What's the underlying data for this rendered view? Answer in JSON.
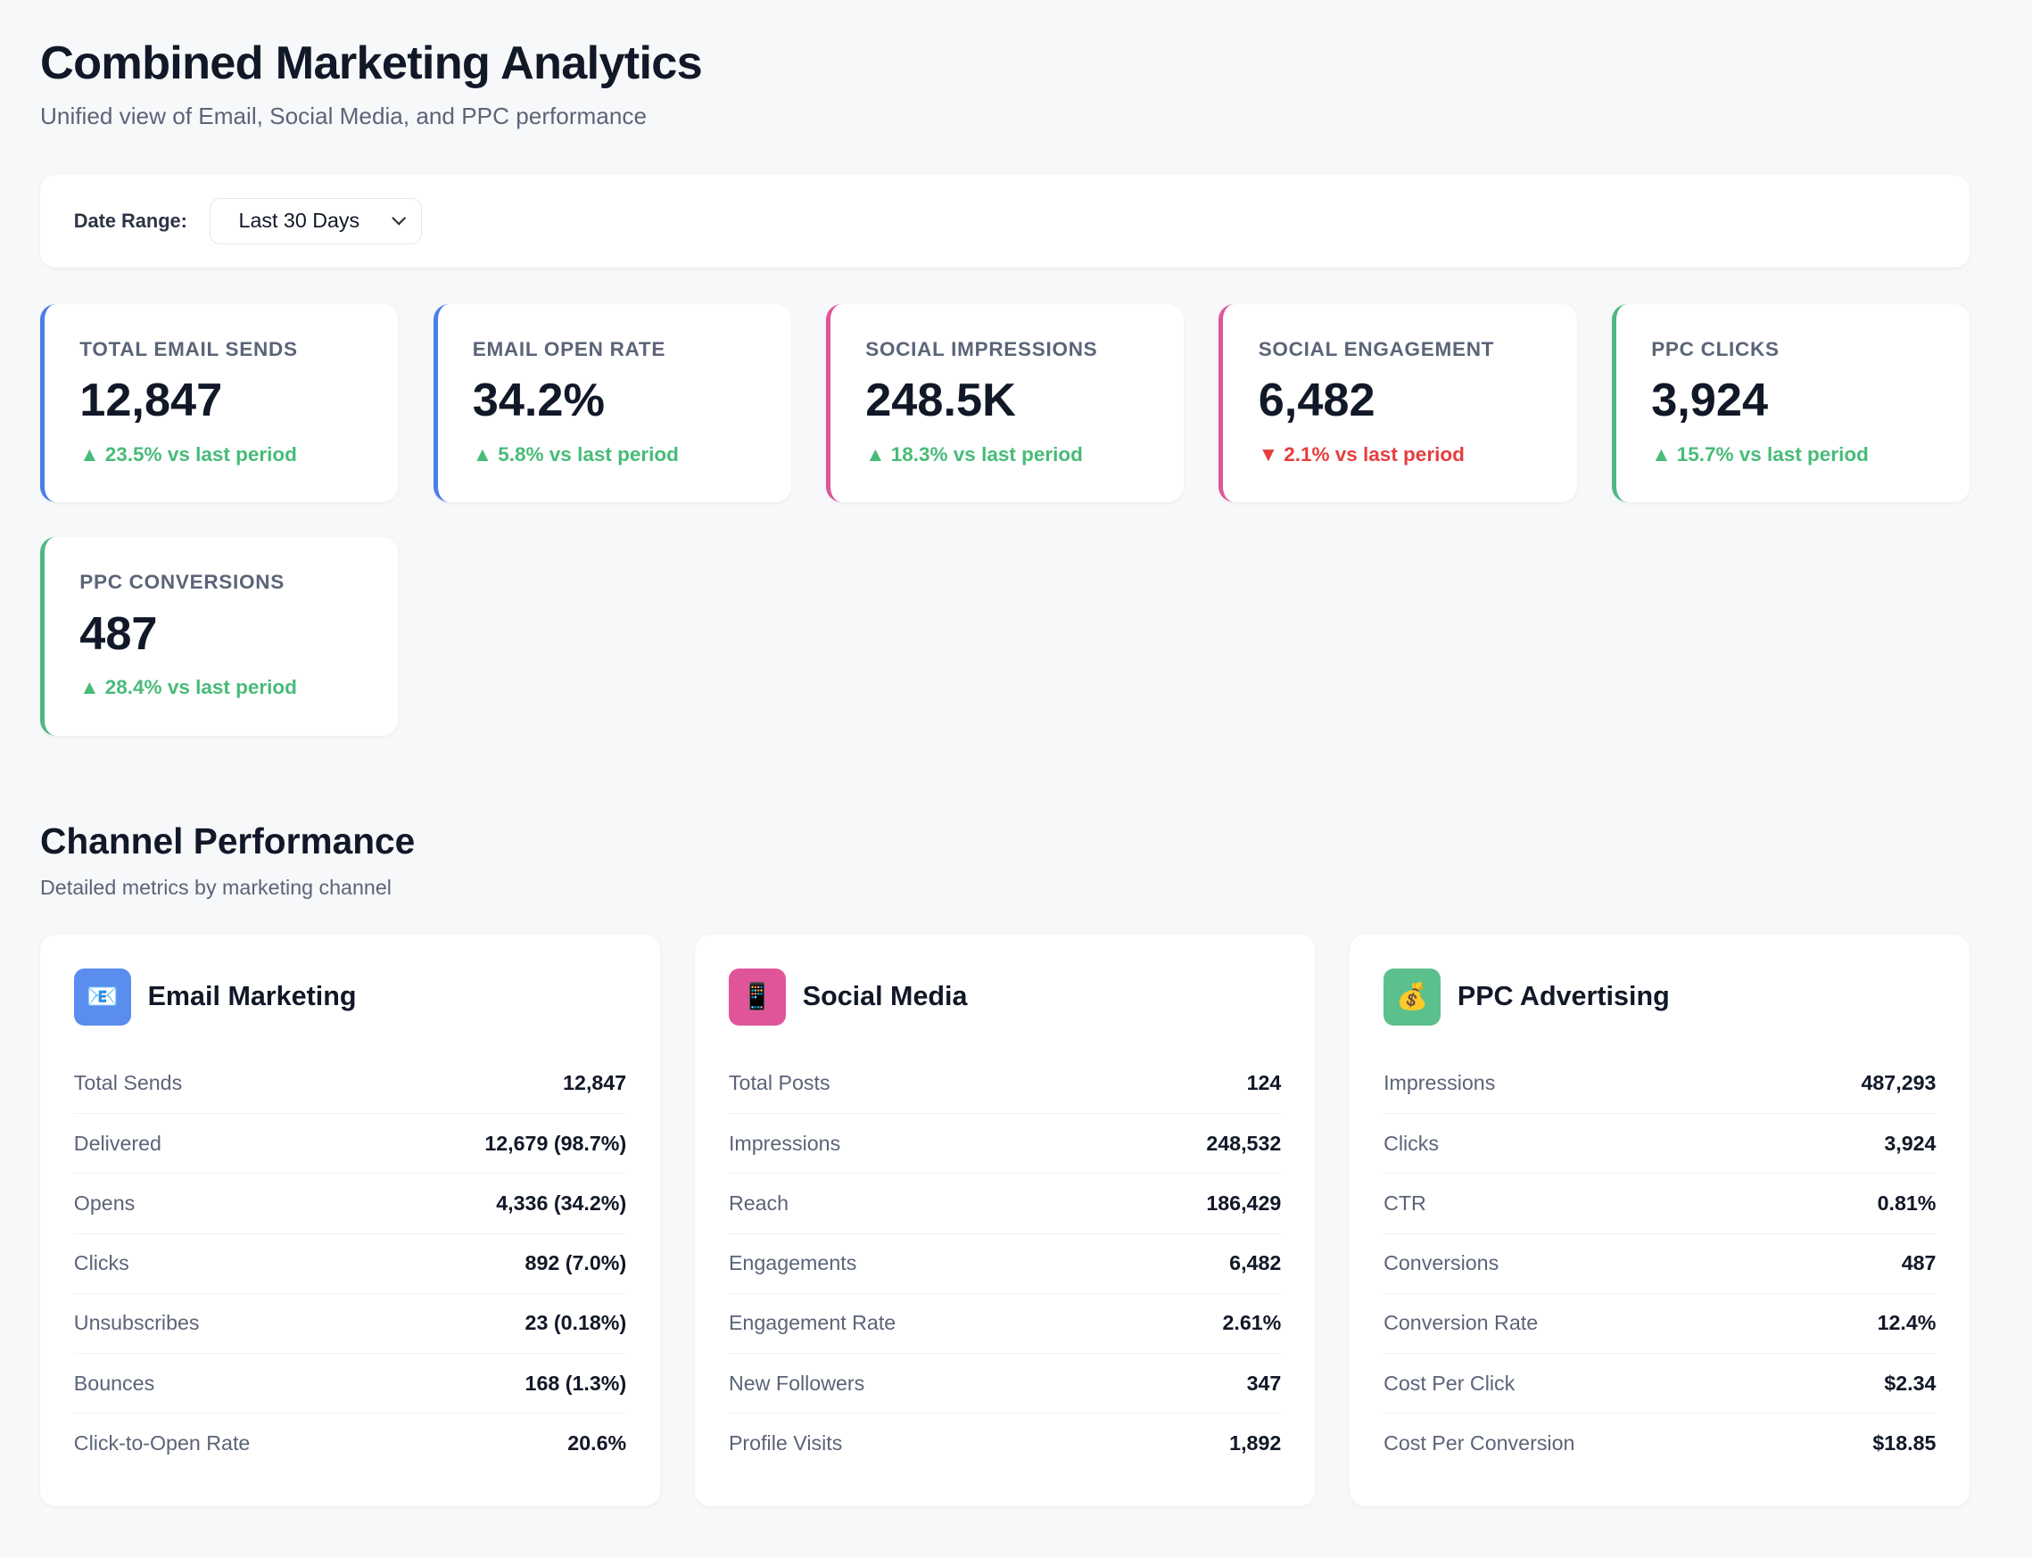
{
  "header": {
    "title": "Combined Marketing Analytics",
    "subtitle": "Unified view of Email, Social Media, and PPC performance"
  },
  "filter": {
    "label": "Date Range:",
    "selected": "Last 30 Days"
  },
  "kpis": [
    {
      "label": "TOTAL EMAIL SENDS",
      "value": "12,847",
      "change": "▲ 23.5% vs last period",
      "trend": "up",
      "color": "#4a7fe8"
    },
    {
      "label": "EMAIL OPEN RATE",
      "value": "34.2%",
      "change": "▲ 5.8% vs last period",
      "trend": "up",
      "color": "#4a7fe8"
    },
    {
      "label": "SOCIAL IMPRESSIONS",
      "value": "248.5K",
      "change": "▲ 18.3% vs last period",
      "trend": "up",
      "color": "#e0559a"
    },
    {
      "label": "SOCIAL ENGAGEMENT",
      "value": "6,482",
      "change": "▼ 2.1% vs last period",
      "trend": "down",
      "color": "#e0559a"
    },
    {
      "label": "PPC CLICKS",
      "value": "3,924",
      "change": "▲ 15.7% vs last period",
      "trend": "up",
      "color": "#4fb882"
    },
    {
      "label": "PPC CONVERSIONS",
      "value": "487",
      "change": "▲ 28.4% vs last period",
      "trend": "up",
      "color": "#4fb882"
    }
  ],
  "section": {
    "title": "Channel Performance",
    "subtitle": "Detailed metrics by marketing channel"
  },
  "channels": [
    {
      "title": "Email Marketing",
      "icon": "📧",
      "color": "#5b8def",
      "rows": [
        [
          "Total Sends",
          "12,847"
        ],
        [
          "Delivered",
          "12,679 (98.7%)"
        ],
        [
          "Opens",
          "4,336 (34.2%)"
        ],
        [
          "Clicks",
          "892 (7.0%)"
        ],
        [
          "Unsubscribes",
          "23 (0.18%)"
        ],
        [
          "Bounces",
          "168 (1.3%)"
        ],
        [
          "Click-to-Open Rate",
          "20.6%"
        ]
      ]
    },
    {
      "title": "Social Media",
      "icon": "📱",
      "color": "#e0559a",
      "rows": [
        [
          "Total Posts",
          "124"
        ],
        [
          "Impressions",
          "248,532"
        ],
        [
          "Reach",
          "186,429"
        ],
        [
          "Engagements",
          "6,482"
        ],
        [
          "Engagement Rate",
          "2.61%"
        ],
        [
          "New Followers",
          "347"
        ],
        [
          "Profile Visits",
          "1,892"
        ]
      ]
    },
    {
      "title": "PPC Advertising",
      "icon": "💰",
      "color": "#5cc08c",
      "rows": [
        [
          "Impressions",
          "487,293"
        ],
        [
          "Clicks",
          "3,924"
        ],
        [
          "CTR",
          "0.81%"
        ],
        [
          "Conversions",
          "487"
        ],
        [
          "Conversion Rate",
          "12.4%"
        ],
        [
          "Cost Per Click",
          "$2.34"
        ],
        [
          "Cost Per Conversion",
          "$18.85"
        ]
      ]
    }
  ]
}
